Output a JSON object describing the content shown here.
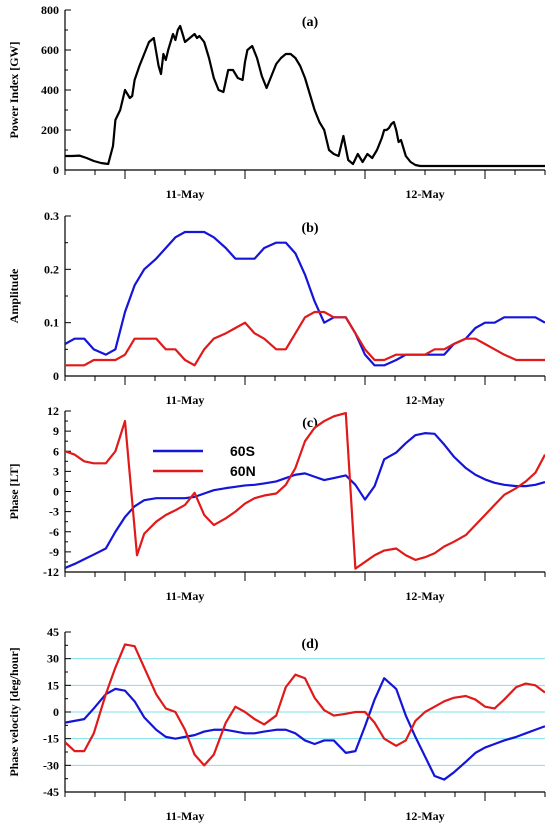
{
  "chart_data": [
    {
      "id": "a",
      "type": "line",
      "panel_label": "(a)",
      "ylabel": "Power Index [GW]",
      "xlabel": "",
      "x_range": [
        0,
        2
      ],
      "ylim": [
        0,
        800
      ],
      "yticks": [
        0,
        200,
        400,
        600,
        800
      ],
      "ytick_labels": [
        "0",
        "200",
        "400",
        "600",
        "800"
      ],
      "xticks": [
        0.5,
        1.5
      ],
      "xtick_labels": [
        "11-May",
        "12-May"
      ],
      "grid": false,
      "series": [
        {
          "color": "#000000",
          "x": [
            0.0,
            0.03,
            0.06,
            0.09,
            0.12,
            0.15,
            0.18,
            0.2,
            0.21,
            0.23,
            0.25,
            0.26,
            0.27,
            0.28,
            0.29,
            0.31,
            0.33,
            0.35,
            0.37,
            0.39,
            0.4,
            0.41,
            0.42,
            0.43,
            0.44,
            0.45,
            0.46,
            0.47,
            0.48,
            0.5,
            0.52,
            0.54,
            0.55,
            0.56,
            0.58,
            0.6,
            0.62,
            0.64,
            0.66,
            0.68,
            0.7,
            0.72,
            0.74,
            0.75,
            0.76,
            0.78,
            0.8,
            0.82,
            0.84,
            0.86,
            0.88,
            0.9,
            0.92,
            0.94,
            0.96,
            0.98,
            1.0,
            1.02,
            1.04,
            1.06,
            1.08,
            1.1,
            1.12,
            1.14,
            1.16,
            1.18,
            1.2,
            1.22,
            1.24,
            1.26,
            1.28,
            1.3,
            1.32,
            1.33,
            1.34,
            1.35,
            1.36,
            1.37,
            1.38,
            1.39,
            1.4,
            1.42,
            1.44,
            1.46,
            1.48,
            1.5,
            1.52,
            1.54,
            1.56,
            1.58,
            1.6,
            1.62,
            1.64,
            1.66,
            1.68,
            1.7,
            1.72,
            1.74,
            1.76,
            1.78,
            1.8,
            1.85,
            1.9,
            1.95,
            2.0
          ],
          "y": [
            70,
            70,
            72,
            60,
            45,
            35,
            30,
            120,
            250,
            300,
            400,
            380,
            360,
            370,
            450,
            520,
            580,
            640,
            660,
            520,
            480,
            580,
            550,
            600,
            640,
            680,
            650,
            700,
            720,
            640,
            660,
            680,
            660,
            670,
            640,
            560,
            460,
            400,
            390,
            500,
            500,
            460,
            450,
            540,
            600,
            620,
            560,
            470,
            410,
            470,
            530,
            560,
            580,
            580,
            560,
            520,
            460,
            380,
            300,
            240,
            200,
            100,
            80,
            70,
            170,
            50,
            30,
            80,
            40,
            80,
            60,
            100,
            160,
            200,
            200,
            210,
            230,
            240,
            200,
            140,
            150,
            70,
            40,
            25,
            20,
            20,
            20,
            20,
            20,
            20,
            20,
            20,
            20,
            20,
            20,
            20,
            20,
            20,
            20,
            20,
            20,
            20,
            20,
            20,
            20
          ]
        }
      ]
    },
    {
      "id": "b",
      "type": "line",
      "panel_label": "(b)",
      "ylabel": "Amplitude",
      "xlabel": "",
      "x_range": [
        0,
        2
      ],
      "ylim": [
        0,
        0.3
      ],
      "yticks": [
        0,
        0.1,
        0.2,
        0.3
      ],
      "ytick_labels": [
        "0",
        "0.1",
        "0.2",
        "0.3"
      ],
      "xticks": [
        0.5,
        1.5
      ],
      "xtick_labels": [
        "11-May",
        "12-May"
      ],
      "grid": false,
      "series": [
        {
          "color": "#1515d8",
          "x": [
            0.0,
            0.04,
            0.08,
            0.12,
            0.17,
            0.21,
            0.25,
            0.29,
            0.33,
            0.38,
            0.42,
            0.46,
            0.5,
            0.54,
            0.58,
            0.62,
            0.67,
            0.71,
            0.75,
            0.79,
            0.83,
            0.88,
            0.92,
            0.96,
            1.0,
            1.04,
            1.08,
            1.12,
            1.17,
            1.21,
            1.25,
            1.29,
            1.33,
            1.38,
            1.42,
            1.46,
            1.5,
            1.54,
            1.58,
            1.62,
            1.67,
            1.71,
            1.75,
            1.79,
            1.83,
            1.88,
            1.92,
            1.96,
            2.0
          ],
          "y": [
            0.06,
            0.07,
            0.07,
            0.05,
            0.04,
            0.05,
            0.12,
            0.17,
            0.2,
            0.22,
            0.24,
            0.26,
            0.27,
            0.27,
            0.27,
            0.26,
            0.24,
            0.22,
            0.22,
            0.22,
            0.24,
            0.25,
            0.25,
            0.23,
            0.19,
            0.14,
            0.1,
            0.11,
            0.11,
            0.08,
            0.04,
            0.02,
            0.02,
            0.03,
            0.04,
            0.04,
            0.04,
            0.04,
            0.04,
            0.06,
            0.07,
            0.09,
            0.1,
            0.1,
            0.11,
            0.11,
            0.11,
            0.11,
            0.1
          ]
        },
        {
          "color": "#e01a1a",
          "x": [
            0.0,
            0.04,
            0.08,
            0.12,
            0.17,
            0.21,
            0.25,
            0.29,
            0.33,
            0.38,
            0.42,
            0.46,
            0.5,
            0.54,
            0.58,
            0.62,
            0.67,
            0.71,
            0.75,
            0.79,
            0.83,
            0.88,
            0.92,
            0.96,
            1.0,
            1.04,
            1.08,
            1.12,
            1.17,
            1.21,
            1.25,
            1.29,
            1.33,
            1.38,
            1.42,
            1.46,
            1.5,
            1.54,
            1.58,
            1.62,
            1.67,
            1.71,
            1.75,
            1.79,
            1.83,
            1.88,
            1.92,
            1.96,
            2.0
          ],
          "y": [
            0.02,
            0.02,
            0.02,
            0.03,
            0.03,
            0.03,
            0.04,
            0.07,
            0.07,
            0.07,
            0.05,
            0.05,
            0.03,
            0.02,
            0.05,
            0.07,
            0.08,
            0.09,
            0.1,
            0.08,
            0.07,
            0.05,
            0.05,
            0.08,
            0.11,
            0.12,
            0.12,
            0.11,
            0.11,
            0.08,
            0.05,
            0.03,
            0.03,
            0.04,
            0.04,
            0.04,
            0.04,
            0.05,
            0.05,
            0.06,
            0.07,
            0.07,
            0.06,
            0.05,
            0.04,
            0.03,
            0.03,
            0.03,
            0.03
          ]
        }
      ]
    },
    {
      "id": "c",
      "type": "line",
      "panel_label": "(c)",
      "ylabel": "Phase [LT]",
      "xlabel": "",
      "x_range": [
        0,
        2
      ],
      "ylim": [
        -12,
        12
      ],
      "yticks": [
        -12,
        -9,
        -6,
        -3,
        0,
        3,
        6,
        9,
        12
      ],
      "ytick_labels": [
        "-12",
        "-9",
        "-6",
        "-3",
        "0",
        "3",
        "6",
        "9",
        "12"
      ],
      "xticks": [
        0.5,
        1.5
      ],
      "xtick_labels": [
        "11-May",
        "12-May"
      ],
      "grid": false,
      "legend": {
        "placement": "upper-left"
      },
      "series": [
        {
          "name": "60S",
          "color": "#1515d8",
          "x": [
            0.0,
            0.04,
            0.08,
            0.12,
            0.17,
            0.21,
            0.25,
            0.29,
            0.33,
            0.38,
            0.42,
            0.46,
            0.5,
            0.54,
            0.58,
            0.62,
            0.67,
            0.71,
            0.75,
            0.79,
            0.83,
            0.88,
            0.92,
            0.96,
            1.0,
            1.04,
            1.08,
            1.12,
            1.17,
            1.21,
            1.25,
            1.29,
            1.33,
            1.38,
            1.42,
            1.46,
            1.5,
            1.54,
            1.58,
            1.62,
            1.67,
            1.71,
            1.75,
            1.79,
            1.83,
            1.88,
            1.92,
            1.96,
            2.0
          ],
          "y": [
            -11.4,
            -10.8,
            -10.1,
            -9.4,
            -8.5,
            -6.0,
            -3.8,
            -2.2,
            -1.3,
            -1.0,
            -1.0,
            -1.0,
            -1.0,
            -0.8,
            -0.3,
            0.2,
            0.5,
            0.7,
            0.9,
            1.0,
            1.2,
            1.5,
            2.0,
            2.5,
            2.7,
            2.2,
            1.7,
            2.0,
            2.4,
            1.0,
            -1.2,
            0.8,
            4.8,
            5.8,
            7.2,
            8.4,
            8.7,
            8.6,
            7.0,
            5.2,
            3.5,
            2.5,
            1.8,
            1.3,
            1.0,
            0.8,
            0.8,
            1.0,
            1.4
          ]
        },
        {
          "name": "60N",
          "color": "#e01a1a",
          "x": [
            0.0,
            0.04,
            0.08,
            0.12,
            0.17,
            0.21,
            0.25,
            0.3,
            0.33,
            0.38,
            0.42,
            0.46,
            0.5,
            0.54,
            0.58,
            0.62,
            0.67,
            0.71,
            0.75,
            0.79,
            0.83,
            0.88,
            0.92,
            0.96,
            1.0,
            1.04,
            1.08,
            1.12,
            1.17,
            1.21,
            1.25,
            1.29,
            1.33,
            1.38,
            1.42,
            1.46,
            1.5,
            1.54,
            1.58,
            1.62,
            1.67,
            1.71,
            1.75,
            1.79,
            1.83,
            1.88,
            1.92,
            1.96,
            2.0
          ],
          "y": [
            6.0,
            5.5,
            4.5,
            4.2,
            4.2,
            6.0,
            10.5,
            -9.5,
            -6.3,
            -4.5,
            -3.5,
            -2.8,
            -2.0,
            -0.2,
            -3.5,
            -5.0,
            -4.0,
            -3.0,
            -1.8,
            -1.0,
            -0.6,
            -0.3,
            1.0,
            3.5,
            7.5,
            9.5,
            10.5,
            11.2,
            11.7,
            -11.5,
            -10.5,
            -9.5,
            -8.8,
            -8.5,
            -9.5,
            -10.2,
            -9.8,
            -9.2,
            -8.2,
            -7.5,
            -6.5,
            -5.0,
            -3.5,
            -2.0,
            -0.5,
            0.5,
            1.5,
            2.8,
            5.5
          ]
        }
      ]
    },
    {
      "id": "d",
      "type": "line",
      "panel_label": "(d)",
      "ylabel": "Phase velocity [deg/hour]",
      "xlabel": "",
      "x_range": [
        0,
        2
      ],
      "ylim": [
        -45,
        45
      ],
      "yticks": [
        -45,
        -30,
        -15,
        0,
        15,
        30,
        45
      ],
      "ytick_labels": [
        "-45",
        "-30",
        "-15",
        "0",
        "15",
        "30",
        "45"
      ],
      "xticks": [
        0.5,
        1.5
      ],
      "xtick_labels": [
        "11-May",
        "12-May"
      ],
      "grid": true,
      "grid_color": "#7fe0e8",
      "series": [
        {
          "color": "#1515d8",
          "x": [
            0.0,
            0.04,
            0.08,
            0.12,
            0.17,
            0.21,
            0.25,
            0.29,
            0.33,
            0.38,
            0.42,
            0.46,
            0.5,
            0.54,
            0.58,
            0.62,
            0.67,
            0.71,
            0.75,
            0.79,
            0.83,
            0.88,
            0.92,
            0.96,
            1.0,
            1.04,
            1.08,
            1.12,
            1.17,
            1.21,
            1.25,
            1.29,
            1.33,
            1.38,
            1.42,
            1.46,
            1.5,
            1.54,
            1.58,
            1.62,
            1.67,
            1.71,
            1.75,
            1.79,
            1.83,
            1.88,
            1.92,
            1.96,
            2.0
          ],
          "y": [
            -6,
            -5,
            -4,
            2,
            10,
            13,
            12,
            6,
            -3,
            -10,
            -14,
            -15,
            -14,
            -13,
            -11,
            -10,
            -10,
            -11,
            -12,
            -12,
            -11,
            -10,
            -10,
            -12,
            -16,
            -18,
            -16,
            -16,
            -23,
            -22,
            -8,
            7,
            19,
            13,
            -2,
            -14,
            -25,
            -36,
            -38,
            -34,
            -28,
            -23,
            -20,
            -18,
            -16,
            -14,
            -12,
            -10,
            -8
          ]
        },
        {
          "color": "#e01a1a",
          "x": [
            0.0,
            0.04,
            0.08,
            0.12,
            0.17,
            0.21,
            0.25,
            0.29,
            0.33,
            0.38,
            0.42,
            0.46,
            0.5,
            0.54,
            0.58,
            0.62,
            0.67,
            0.71,
            0.75,
            0.79,
            0.83,
            0.88,
            0.92,
            0.96,
            1.0,
            1.04,
            1.08,
            1.12,
            1.17,
            1.21,
            1.25,
            1.29,
            1.33,
            1.38,
            1.42,
            1.46,
            1.5,
            1.54,
            1.58,
            1.62,
            1.67,
            1.71,
            1.75,
            1.79,
            1.83,
            1.88,
            1.92,
            1.96,
            2.0
          ],
          "y": [
            -17,
            -22,
            -22,
            -12,
            10,
            25,
            38,
            37,
            25,
            10,
            2,
            0,
            -10,
            -24,
            -30,
            -24,
            -6,
            3,
            0,
            -4,
            -7,
            -2,
            14,
            21,
            19,
            8,
            1,
            -2,
            -1,
            0,
            0,
            -6,
            -15,
            -19,
            -16,
            -5,
            0,
            3,
            6,
            8,
            9,
            7,
            3,
            2,
            7,
            14,
            16,
            15,
            11
          ]
        }
      ]
    }
  ]
}
